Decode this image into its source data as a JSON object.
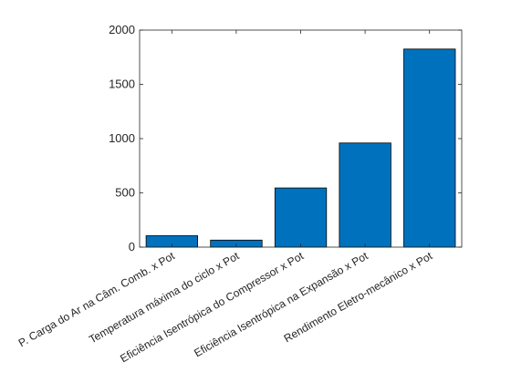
{
  "chart_data": {
    "type": "bar",
    "title": "",
    "xlabel": "",
    "ylabel": "",
    "categories": [
      "P. Carga do Ar na Câm. Comb. x Pot",
      "Temperatura máxima do ciclo x Pot",
      "Eficiência Isentrópica do Compressor x Pot",
      "Eficiência Isentrópica na Expansão x Pot",
      "Rendimento Eletro-mecânico x Pot"
    ],
    "values": [
      105,
      65,
      545,
      960,
      1825
    ],
    "ylim": [
      0,
      2000
    ],
    "yticks": [
      0,
      500,
      1000,
      1500,
      2000
    ],
    "ytick_labels": [
      "0",
      "500",
      "1000",
      "1500",
      "2000"
    ],
    "bar_color": "#0072BD",
    "bar_edge_color": "#000000",
    "axis_color": "#262626",
    "grid": false,
    "box": true
  }
}
